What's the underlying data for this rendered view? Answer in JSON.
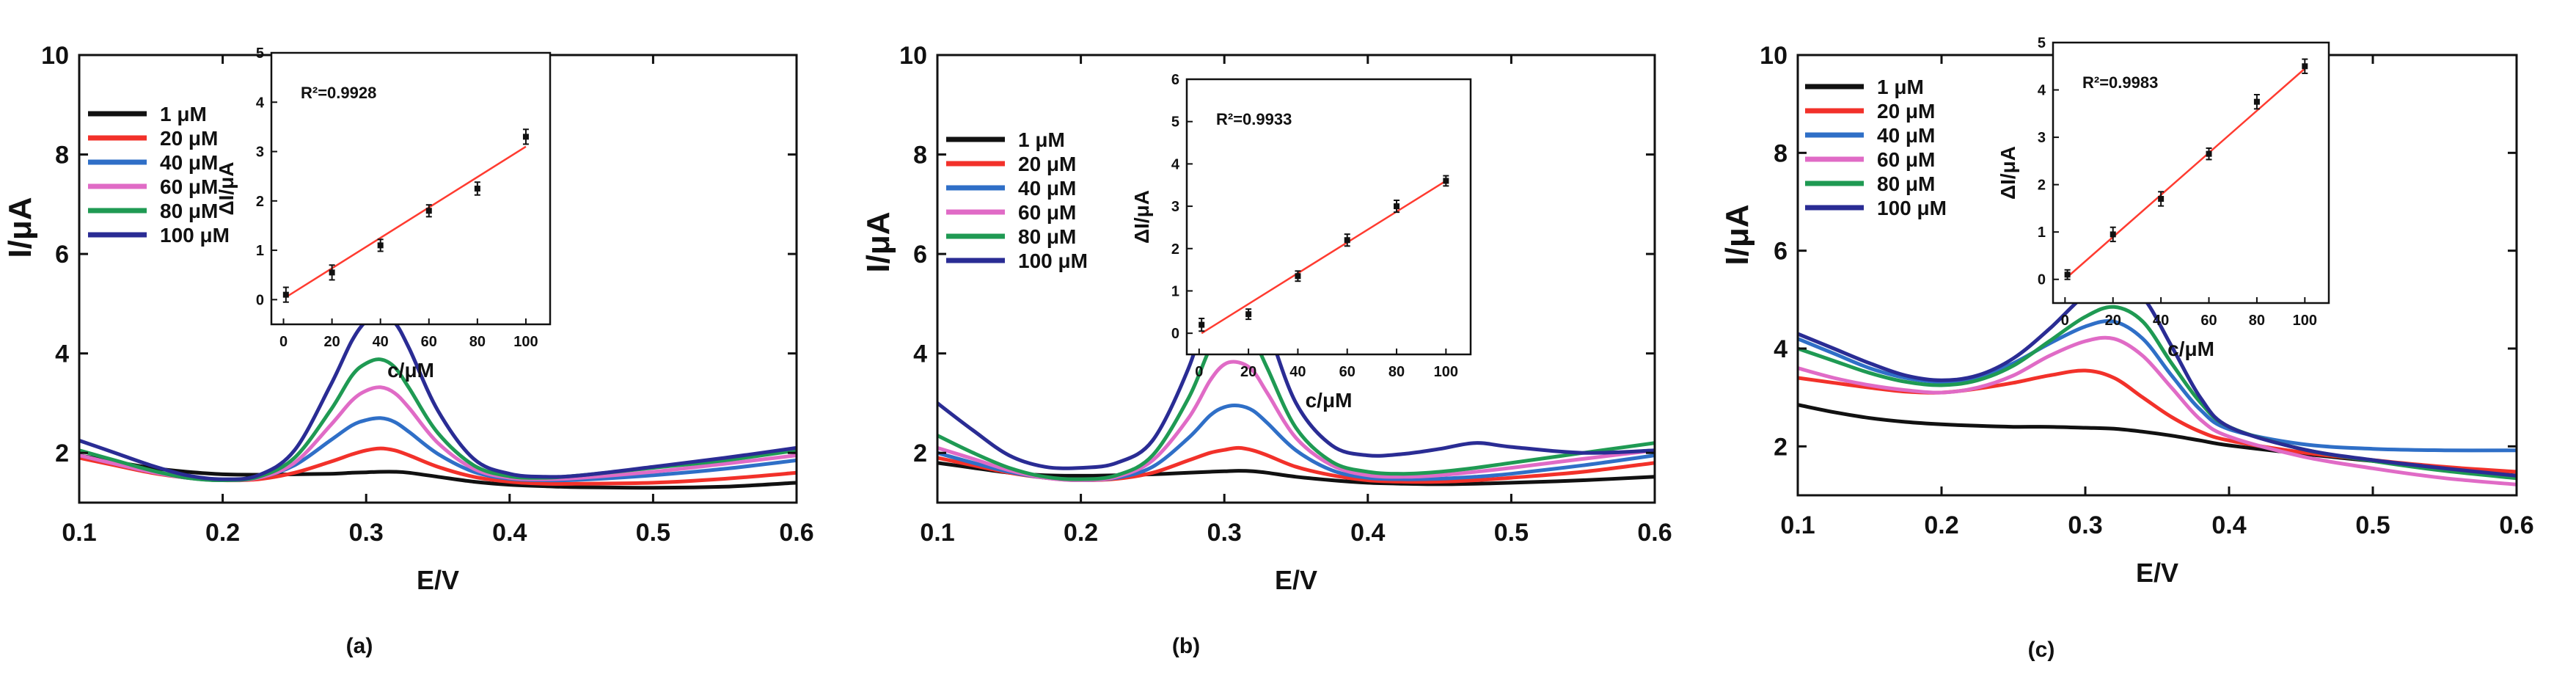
{
  "colors": {
    "1": "#111111",
    "20": "#f2312a",
    "40": "#2f6fc7",
    "60": "#e06bc6",
    "80": "#1f9a53",
    "100": "#2a2c94",
    "fit": "#ff3b30"
  },
  "chart_data": [
    {
      "type": "line",
      "panel_label": "(a)",
      "xlabel": "E/V",
      "ylabel": "I/μA",
      "xlim": [
        0.1,
        0.6
      ],
      "ylim": [
        1.0,
        10.0
      ],
      "xticks": [
        "0.1",
        "0.2",
        "0.3",
        "0.4",
        "0.5",
        "0.6"
      ],
      "yticks": [
        "2",
        "4",
        "6",
        "8",
        "10"
      ],
      "legend": [
        "1 μM",
        "20 μM",
        "40 μM",
        "60 μM",
        "80 μM",
        "100 μM"
      ],
      "x": [
        0.1,
        0.125,
        0.15,
        0.175,
        0.2,
        0.225,
        0.25,
        0.275,
        0.29,
        0.3,
        0.31,
        0.32,
        0.33,
        0.35,
        0.375,
        0.4,
        0.425,
        0.45,
        0.5,
        0.55,
        0.6
      ],
      "series": [
        {
          "name": "1 μM",
          "color_key": "1",
          "values": [
            1.95,
            1.82,
            1.7,
            1.62,
            1.57,
            1.56,
            1.57,
            1.58,
            1.6,
            1.61,
            1.62,
            1.62,
            1.6,
            1.52,
            1.42,
            1.36,
            1.33,
            1.31,
            1.3,
            1.32,
            1.4
          ]
        },
        {
          "name": "20 μM",
          "color_key": "20",
          "values": [
            1.9,
            1.75,
            1.6,
            1.5,
            1.45,
            1.47,
            1.6,
            1.82,
            1.97,
            2.05,
            2.09,
            2.05,
            1.95,
            1.72,
            1.52,
            1.42,
            1.38,
            1.38,
            1.4,
            1.48,
            1.6
          ]
        },
        {
          "name": "40 μM",
          "color_key": "40",
          "values": [
            1.95,
            1.78,
            1.62,
            1.5,
            1.45,
            1.5,
            1.75,
            2.25,
            2.55,
            2.66,
            2.7,
            2.62,
            2.42,
            1.98,
            1.62,
            1.48,
            1.45,
            1.46,
            1.55,
            1.68,
            1.85
          ]
        },
        {
          "name": "60 μM",
          "color_key": "60",
          "values": [
            1.95,
            1.78,
            1.62,
            1.5,
            1.45,
            1.5,
            1.8,
            2.55,
            3.05,
            3.25,
            3.32,
            3.2,
            2.9,
            2.2,
            1.68,
            1.5,
            1.47,
            1.5,
            1.62,
            1.78,
            1.95
          ]
        },
        {
          "name": "80 μM",
          "color_key": "80",
          "values": [
            2.05,
            1.85,
            1.65,
            1.5,
            1.45,
            1.52,
            1.9,
            2.85,
            3.55,
            3.8,
            3.88,
            3.72,
            3.3,
            2.4,
            1.75,
            1.53,
            1.5,
            1.55,
            1.7,
            1.85,
            2.05
          ]
        },
        {
          "name": "100 μM",
          "color_key": "100",
          "values": [
            2.25,
            2.0,
            1.75,
            1.55,
            1.47,
            1.55,
            2.05,
            3.35,
            4.25,
            4.65,
            4.8,
            4.62,
            4.1,
            2.85,
            1.88,
            1.58,
            1.52,
            1.55,
            1.72,
            1.9,
            2.1
          ]
        }
      ],
      "inset": {
        "type": "scatter",
        "xlabel": "c/μM",
        "ylabel": "ΔI/μA",
        "annotation": "R²=0.9928",
        "xlim": [
          -5,
          110
        ],
        "ylim": [
          -0.5,
          5.0
        ],
        "xticks": [
          "0",
          "20",
          "40",
          "60",
          "80",
          "100"
        ],
        "yticks": [
          "0",
          "1",
          "2",
          "3",
          "4",
          "5"
        ],
        "x": [
          1,
          20,
          40,
          60,
          80,
          100
        ],
        "y": [
          0.1,
          0.55,
          1.1,
          1.8,
          2.25,
          3.3
        ],
        "error": [
          0.15,
          0.15,
          0.12,
          0.12,
          0.13,
          0.15
        ],
        "fit": [
          [
            1,
            0.05
          ],
          [
            100,
            3.1
          ]
        ]
      }
    },
    {
      "type": "line",
      "panel_label": "(b)",
      "xlabel": "E/V",
      "ylabel": "I/μA",
      "xlim": [
        0.1,
        0.6
      ],
      "ylim": [
        1.0,
        10.0
      ],
      "xticks": [
        "0.1",
        "0.2",
        "0.3",
        "0.4",
        "0.5",
        "0.6"
      ],
      "yticks": [
        "2",
        "4",
        "6",
        "8",
        "10"
      ],
      "legend": [
        "1 μM",
        "20 μM",
        "40 μM",
        "60 μM",
        "80 μM",
        "100 μM"
      ],
      "x": [
        0.1,
        0.125,
        0.15,
        0.175,
        0.2,
        0.225,
        0.25,
        0.275,
        0.29,
        0.3,
        0.31,
        0.32,
        0.33,
        0.35,
        0.375,
        0.4,
        0.425,
        0.45,
        0.475,
        0.5,
        0.55,
        0.6
      ],
      "series": [
        {
          "name": "1 μM",
          "color_key": "1",
          "values": [
            1.8,
            1.7,
            1.6,
            1.55,
            1.54,
            1.55,
            1.57,
            1.6,
            1.62,
            1.63,
            1.64,
            1.63,
            1.6,
            1.52,
            1.45,
            1.4,
            1.38,
            1.37,
            1.38,
            1.4,
            1.45,
            1.52
          ]
        },
        {
          "name": "20 μM",
          "color_key": "20",
          "values": [
            1.9,
            1.75,
            1.6,
            1.5,
            1.45,
            1.48,
            1.6,
            1.85,
            2.0,
            2.06,
            2.1,
            2.05,
            1.95,
            1.72,
            1.55,
            1.45,
            1.42,
            1.42,
            1.45,
            1.5,
            1.62,
            1.8
          ]
        },
        {
          "name": "40 μM",
          "color_key": "40",
          "values": [
            2.0,
            1.8,
            1.62,
            1.5,
            1.45,
            1.5,
            1.72,
            2.3,
            2.75,
            2.92,
            2.95,
            2.85,
            2.6,
            2.05,
            1.65,
            1.5,
            1.47,
            1.48,
            1.52,
            1.58,
            1.75,
            1.95
          ]
        },
        {
          "name": "60 μM",
          "color_key": "60",
          "values": [
            2.1,
            1.88,
            1.65,
            1.5,
            1.45,
            1.52,
            1.85,
            2.7,
            3.45,
            3.78,
            3.82,
            3.65,
            3.2,
            2.3,
            1.75,
            1.55,
            1.52,
            1.55,
            1.62,
            1.7,
            1.88,
            2.05
          ]
        },
        {
          "name": "80 μM",
          "color_key": "80",
          "values": [
            2.35,
            2.0,
            1.7,
            1.52,
            1.47,
            1.55,
            1.95,
            3.1,
            4.1,
            4.5,
            4.55,
            4.3,
            3.7,
            2.5,
            1.82,
            1.62,
            1.58,
            1.62,
            1.7,
            1.8,
            2.0,
            2.2
          ]
        },
        {
          "name": "100 μM",
          "color_key": "100",
          "values": [
            3.0,
            2.45,
            1.95,
            1.72,
            1.7,
            1.8,
            2.25,
            3.7,
            5.05,
            5.55,
            5.65,
            5.35,
            4.55,
            3.0,
            2.15,
            1.95,
            1.98,
            2.08,
            2.2,
            2.12,
            2.0,
            2.05
          ]
        }
      ],
      "inset": {
        "type": "scatter",
        "xlabel": "c/μM",
        "ylabel": "ΔI/μA",
        "annotation": "R²=0.9933",
        "xlim": [
          -5,
          110
        ],
        "ylim": [
          -0.5,
          6.0
        ],
        "xticks": [
          "0",
          "20",
          "40",
          "60",
          "80",
          "100"
        ],
        "yticks": [
          "0",
          "1",
          "2",
          "3",
          "4",
          "5",
          "6"
        ],
        "x": [
          1,
          20,
          40,
          60,
          80,
          100
        ],
        "y": [
          0.2,
          0.45,
          1.35,
          2.2,
          3.0,
          3.6
        ],
        "error": [
          0.15,
          0.12,
          0.12,
          0.14,
          0.14,
          0.12
        ],
        "fit": [
          [
            1,
            0.0
          ],
          [
            100,
            3.6
          ]
        ]
      }
    },
    {
      "type": "line",
      "panel_label": "(c)",
      "xlabel": "E/V",
      "ylabel": "I/μA",
      "xlim": [
        0.1,
        0.6
      ],
      "ylim": [
        1.0,
        10.0
      ],
      "xticks": [
        "0.1",
        "0.2",
        "0.3",
        "0.4",
        "0.5",
        "0.6"
      ],
      "yticks": [
        "2",
        "4",
        "6",
        "8",
        "10"
      ],
      "legend": [
        "1 μM",
        "20 μM",
        "40 μM",
        "60 μM",
        "80 μM",
        "100 μM"
      ],
      "x": [
        0.1,
        0.125,
        0.15,
        0.175,
        0.2,
        0.225,
        0.25,
        0.275,
        0.3,
        0.32,
        0.34,
        0.36,
        0.38,
        0.4,
        0.45,
        0.5,
        0.55,
        0.6
      ],
      "series": [
        {
          "name": "1 μM",
          "color_key": "1",
          "values": [
            2.85,
            2.7,
            2.58,
            2.5,
            2.45,
            2.42,
            2.4,
            2.4,
            2.38,
            2.36,
            2.3,
            2.22,
            2.12,
            2.02,
            1.85,
            1.7,
            1.55,
            1.4
          ]
        },
        {
          "name": "20 μM",
          "color_key": "20",
          "values": [
            3.4,
            3.3,
            3.2,
            3.12,
            3.1,
            3.18,
            3.3,
            3.45,
            3.55,
            3.4,
            3.0,
            2.6,
            2.3,
            2.12,
            1.88,
            1.72,
            1.58,
            1.48
          ]
        },
        {
          "name": "40 μM",
          "color_key": "40",
          "values": [
            4.2,
            3.9,
            3.6,
            3.4,
            3.32,
            3.4,
            3.7,
            4.1,
            4.45,
            4.55,
            4.2,
            3.45,
            2.75,
            2.35,
            2.05,
            1.95,
            1.92,
            1.92
          ]
        },
        {
          "name": "60 μM",
          "color_key": "60",
          "values": [
            3.6,
            3.4,
            3.25,
            3.15,
            3.1,
            3.2,
            3.45,
            3.85,
            4.15,
            4.2,
            3.85,
            3.2,
            2.55,
            2.2,
            1.8,
            1.55,
            1.35,
            1.22
          ]
        },
        {
          "name": "80 μM",
          "color_key": "80",
          "values": [
            4.0,
            3.75,
            3.5,
            3.32,
            3.25,
            3.35,
            3.65,
            4.15,
            4.65,
            4.85,
            4.55,
            3.7,
            2.9,
            2.4,
            1.95,
            1.7,
            1.5,
            1.35
          ]
        },
        {
          "name": "100 μM",
          "color_key": "100",
          "values": [
            4.3,
            4.0,
            3.7,
            3.45,
            3.35,
            3.45,
            3.8,
            4.4,
            5.1,
            5.4,
            5.05,
            4.05,
            3.0,
            2.4,
            1.95,
            1.72,
            1.55,
            1.4
          ]
        }
      ],
      "inset": {
        "type": "scatter",
        "xlabel": "c/μM",
        "ylabel": "ΔI/μA",
        "annotation": "R²=0.9983",
        "xlim": [
          -5,
          110
        ],
        "ylim": [
          -0.5,
          5.0
        ],
        "xticks": [
          "0",
          "20",
          "40",
          "60",
          "80",
          "100"
        ],
        "yticks": [
          "0",
          "1",
          "2",
          "3",
          "4",
          "5"
        ],
        "x": [
          1,
          20,
          40,
          60,
          80,
          100
        ],
        "y": [
          0.1,
          0.95,
          1.7,
          2.65,
          3.75,
          4.5
        ],
        "error": [
          0.1,
          0.15,
          0.15,
          0.12,
          0.15,
          0.15
        ],
        "fit": [
          [
            1,
            0.05
          ],
          [
            100,
            4.45
          ]
        ]
      }
    }
  ]
}
